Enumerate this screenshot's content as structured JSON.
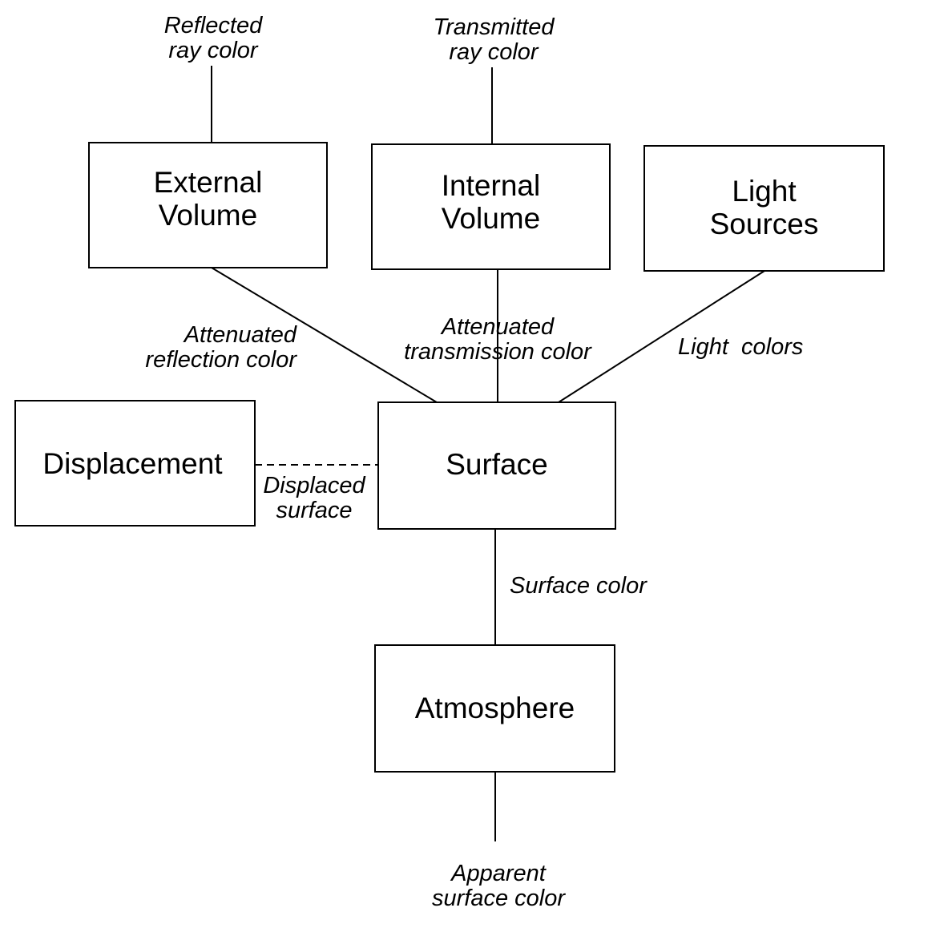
{
  "diagram": {
    "nodes": {
      "external_volume": "External\nVolume",
      "internal_volume": "Internal\nVolume",
      "light_sources": "Light\nSources",
      "displacement": "Displacement",
      "surface": "Surface",
      "atmosphere": "Atmosphere"
    },
    "edge_labels": {
      "reflected_ray_color": "Reflected\nray color",
      "transmitted_ray_color": "Transmitted\nray color",
      "attenuated_reflection_color": "Attenuated\nreflection color",
      "attenuated_transmission_color": "Attenuated\ntransmission color",
      "light_colors": "Light  colors",
      "displaced_surface": "Displaced\nsurface",
      "surface_color": "Surface color",
      "apparent_surface_color": "Apparent\nsurface color"
    },
    "edges": [
      {
        "from": "external_volume",
        "to": "surface",
        "label": "attenuated_reflection_color",
        "style": "solid"
      },
      {
        "from": "internal_volume",
        "to": "surface",
        "label": "attenuated_transmission_color",
        "style": "solid"
      },
      {
        "from": "light_sources",
        "to": "surface",
        "label": "light_colors",
        "style": "solid"
      },
      {
        "from": "displacement",
        "to": "surface",
        "label": "displaced_surface",
        "style": "dashed"
      },
      {
        "from": "surface",
        "to": "atmosphere",
        "label": "surface_color",
        "style": "solid"
      }
    ],
    "line_color": "#000000"
  }
}
